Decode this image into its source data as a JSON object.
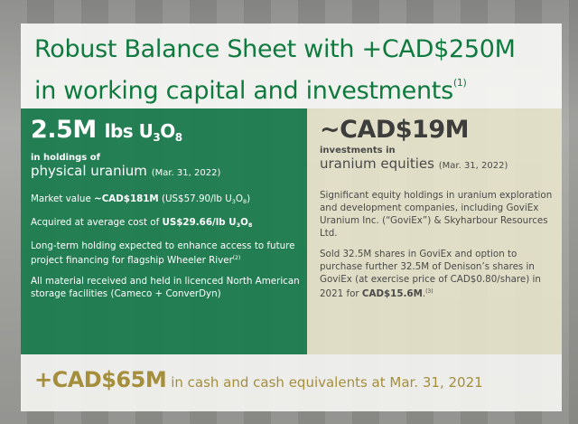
{
  "title": {
    "line1": "Robust Balance Sheet with +CAD$250M",
    "line2": "in working capital and investments",
    "footnote": "(1)"
  },
  "uranium": {
    "amount": "2.5M",
    "unit": "lbs U",
    "sub3": "3",
    "o": "O",
    "sub8": "8",
    "caption": "in holdings of",
    "heading": "physical uranium",
    "date": "(Mar. 31, 2022)",
    "market": {
      "pre": "Market value ",
      "bold": "~CAD$181M",
      "post": " (US$57.90/lb U",
      "s3": "3",
      "o": "O",
      "s8": "8",
      "end": ")"
    },
    "cost": {
      "pre": "Acquired at average cost of ",
      "bold": "US$29.66/lb U",
      "s3": "3",
      "o": "O",
      "s8": "8"
    },
    "longterm": {
      "text": "Long-term holding expected to enhance access to future project financing for flagship Wheeler River",
      "footnote": "(2)"
    },
    "storage": "All material received and held in licenced North American storage facilities (Cameco + ConverDyn)"
  },
  "equities": {
    "amount": "~CAD$19M",
    "caption": "investments in",
    "heading": "uranium equities",
    "date": "(Mar. 31, 2022)",
    "holdings": "Significant equity holdings in uranium exploration and development companies, including GoviEx Uranium Inc. (“GoviEx”) & Skyharbour Resources Ltd.",
    "sold": {
      "pre": "Sold 32.5M shares in GoviEx and option to purchase further 32.5M of Denison’s shares in GoviEx (at exercise price of CAD$0.80/share) in 2021 for ",
      "bold": "CAD$15.6M",
      "post": ".",
      "footnote": "(3)"
    }
  },
  "cash": {
    "amount": "+CAD$65M",
    "text": "in cash and cash equivalents at Mar. 31, 2021"
  },
  "colors": {
    "green": "#1a7c4e",
    "title": "#0f7a3e",
    "gold": "#a58e3c"
  }
}
